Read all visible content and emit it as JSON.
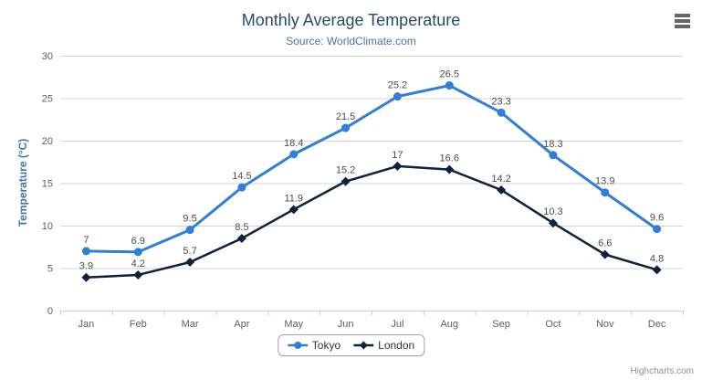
{
  "chart_data": {
    "type": "line",
    "title": "Monthly Average Temperature",
    "subtitle": "Source: WorldClimate.com",
    "xlabel": "",
    "ylabel": "Temperature (°C)",
    "categories": [
      "Jan",
      "Feb",
      "Mar",
      "Apr",
      "May",
      "Jun",
      "Jul",
      "Aug",
      "Sep",
      "Oct",
      "Nov",
      "Dec"
    ],
    "series": [
      {
        "name": "Tokyo",
        "color": "#2f7ed8",
        "marker": "circle",
        "values": [
          7,
          6.9,
          9.5,
          14.5,
          18.4,
          21.5,
          25.2,
          26.5,
          23.3,
          18.3,
          13.9,
          9.6
        ]
      },
      {
        "name": "London",
        "color": "#0d233a",
        "marker": "diamond",
        "values": [
          3.9,
          4.2,
          5.7,
          8.5,
          11.9,
          15.2,
          17,
          16.6,
          14.2,
          10.3,
          6.6,
          4.8
        ]
      }
    ],
    "ylim": [
      0,
      30
    ],
    "yticks": [
      0,
      5,
      10,
      15,
      20,
      25,
      30
    ],
    "grid": true,
    "data_labels": true,
    "legend_position": "bottom",
    "credits": "Highcharts.com",
    "colors": {
      "grid_line": "#d4d4d4",
      "axis_line": "#c0d0e0",
      "tick_label": "#606060",
      "title": "#274b6d",
      "subtitle": "#4d759e",
      "axis_title": "#4572a7",
      "data_label": "#4d4d4d"
    }
  }
}
